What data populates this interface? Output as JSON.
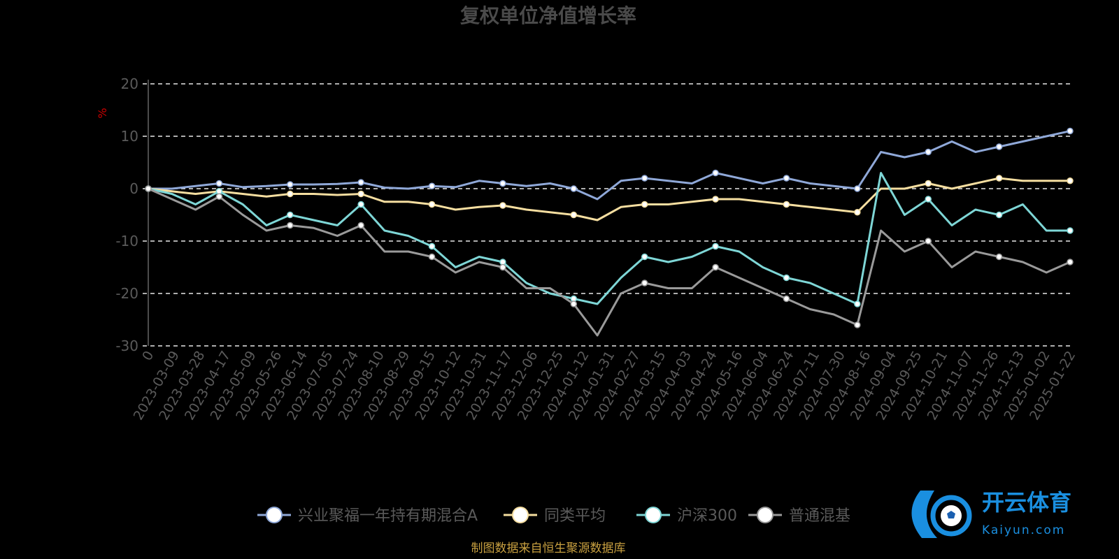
{
  "chart_data": {
    "type": "line",
    "title": "复权单位净值增长率",
    "unit_label": "%",
    "ylim": [
      -30,
      20
    ],
    "y_ticks": [
      20,
      10,
      0,
      -10,
      -20,
      -30
    ],
    "x_tick_labels": [
      "0",
      "2023-03-09",
      "2023-03-28",
      "2023-04-17",
      "2023-05-09",
      "2023-05-26",
      "2023-06-14",
      "2023-07-05",
      "2023-07-24",
      "2023-08-10",
      "2023-08-29",
      "2023-09-15",
      "2023-10-12",
      "2023-10-31",
      "2023-11-17",
      "2023-12-06",
      "2023-12-25",
      "2024-01-12",
      "2024-01-31",
      "2024-02-27",
      "2024-03-15",
      "2024-04-03",
      "2024-04-24",
      "2024-05-16",
      "2024-06-04",
      "2024-06-24",
      "2024-07-11",
      "2024-07-30",
      "2024-08-16",
      "2024-09-04",
      "2024-09-25",
      "2024-10-21",
      "2024-11-07",
      "2024-11-26",
      "2024-12-13",
      "2025-01-02",
      "2025-01-22"
    ],
    "grid": "dashed horizontal",
    "legend_position": "bottom-center",
    "series": [
      {
        "name": "兴业聚福一年持有期混合A",
        "color": "#8fa8d8",
        "values": [
          0,
          0,
          0.5,
          1,
          0.3,
          0.5,
          0.8,
          0.8,
          0.9,
          1.2,
          0.2,
          0,
          0.5,
          0.3,
          1.5,
          1,
          0.5,
          1,
          0,
          -2,
          1.5,
          2,
          1.5,
          1,
          3,
          2,
          1,
          2,
          1,
          0.5,
          0,
          7,
          6,
          7,
          9,
          7,
          8,
          9,
          10,
          11
        ]
      },
      {
        "name": "同类平均",
        "color": "#f5dea0",
        "values": [
          0,
          -0.5,
          -1,
          -0.5,
          -1,
          -1.5,
          -1,
          -1,
          -1.2,
          -1,
          -2.5,
          -2.5,
          -3,
          -4,
          -3.5,
          -3.2,
          -4,
          -4.5,
          -5,
          -6,
          -3.5,
          -3,
          -3,
          -2.5,
          -2,
          -2,
          -2.5,
          -3,
          -3.5,
          -4,
          -4.5,
          0,
          0,
          1,
          0,
          1,
          2,
          1.5,
          1.5,
          1.5
        ]
      },
      {
        "name": "沪深300",
        "color": "#7ed6d6",
        "values": [
          0,
          -1,
          -3,
          -0.5,
          -3,
          -7,
          -5,
          -6,
          -7,
          -3,
          -8,
          -9,
          -11,
          -15,
          -13,
          -14,
          -18,
          -20,
          -21,
          -22,
          -17,
          -13,
          -14,
          -13,
          -11,
          -12,
          -15,
          -17,
          -18,
          -20,
          -22,
          3,
          -5,
          -2,
          -7,
          -4,
          -5,
          -3,
          -8,
          -8
        ]
      },
      {
        "name": "普通混基",
        "color": "#9a9a9a",
        "values": [
          0,
          -2,
          -4,
          -1.5,
          -5,
          -8,
          -7,
          -7.5,
          -9,
          -7,
          -12,
          -12,
          -13,
          -16,
          -14,
          -15,
          -19,
          -19,
          -22,
          -28,
          -20,
          -18,
          -19,
          -19,
          -15,
          -17,
          -19,
          -21,
          -23,
          -24,
          -26,
          -8,
          -12,
          -10,
          -15,
          -12,
          -13,
          -14,
          -16,
          -14
        ]
      }
    ],
    "source": "制图数据来自恒生聚源数据库"
  },
  "watermark": {
    "text": "开云体育",
    "sub": "Kaiyun.com",
    "color": "#1a8fe0"
  }
}
